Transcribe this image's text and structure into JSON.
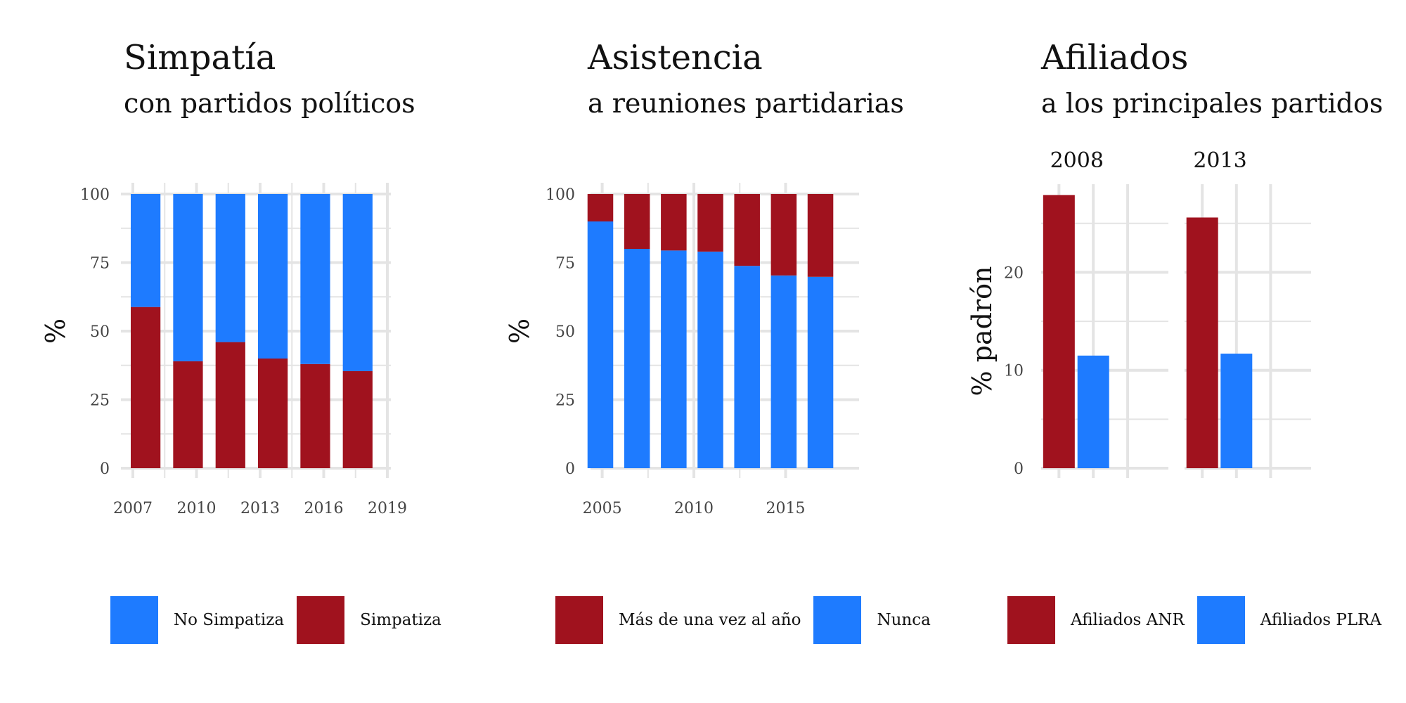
{
  "colors": {
    "red": "#A0121E",
    "blue": "#1E7BFF"
  },
  "panels": {
    "p1": {
      "title": "Simpatía",
      "subtitle": "con partidos políticos",
      "legend": [
        "No Simpatiza",
        "Simpatiza"
      ]
    },
    "p2": {
      "title": "Asistencia",
      "subtitle": "a reuniones partidarias",
      "legend": [
        "Más de una vez al año",
        "Nunca"
      ]
    },
    "p3": {
      "title": "Afiliados",
      "subtitle": "a los principales partidos",
      "legend": [
        "Afiliados ANR",
        "Afiliados PLRA"
      ]
    }
  },
  "chart_data": [
    {
      "type": "bar",
      "stacked": true,
      "title": "Simpatía",
      "subtitle": "con partidos políticos",
      "ylabel": "%",
      "ylim": [
        0,
        100
      ],
      "yticks": [
        0,
        25,
        50,
        75,
        100
      ],
      "xticks": [
        2007,
        2010,
        2013,
        2016,
        2019
      ],
      "xlim": [
        2006.9,
        2018.9
      ],
      "bar_width_years": 1.4,
      "x": [
        2007.6,
        2009.6,
        2011.6,
        2013.6,
        2015.6,
        2017.6
      ],
      "series": [
        {
          "name": "Simpatiza",
          "color": "#A0121E",
          "values": [
            58.8,
            39,
            46,
            40,
            38,
            35.4
          ]
        },
        {
          "name": "No Simpatiza",
          "color": "#1E7BFF",
          "values": [
            41.2,
            61,
            54,
            60,
            62,
            64.6
          ]
        }
      ],
      "legend": [
        "No Simpatiza",
        "Simpatiza"
      ],
      "legend_position": "bottom",
      "grid": true
    },
    {
      "type": "bar",
      "stacked": true,
      "title": "Asistencia",
      "subtitle": "a reuniones partidarias",
      "ylabel": "%",
      "ylim": [
        0,
        100
      ],
      "yticks": [
        0,
        25,
        50,
        75,
        100
      ],
      "xticks": [
        2005,
        2010,
        2015
      ],
      "xlim": [
        2004.9,
        2018.7
      ],
      "bar_width_years": 1.4,
      "x": [
        2004.9,
        2006.9,
        2008.9,
        2010.9,
        2012.9,
        2014.9,
        2016.9
      ],
      "series": [
        {
          "name": "Nunca",
          "color": "#1E7BFF",
          "values": [
            90,
            80,
            79.4,
            79,
            73.8,
            70.3,
            69.8
          ]
        },
        {
          "name": "Más de una vez al año",
          "color": "#A0121E",
          "values": [
            10,
            20,
            20.6,
            21,
            26.2,
            29.7,
            30.2
          ]
        }
      ],
      "legend": [
        "Más de una vez al año",
        "Nunca"
      ],
      "legend_position": "bottom",
      "grid": true
    },
    {
      "type": "bar",
      "title": "Afiliados",
      "subtitle": "a los principales partidos",
      "ylabel": "% padrón",
      "ylim": [
        0,
        28
      ],
      "yticks": [
        0,
        10,
        20
      ],
      "facets": [
        "2008",
        "2013"
      ],
      "categories": [
        "Afiliados ANR",
        "Afiliados PLRA"
      ],
      "series": [
        {
          "name": "Afiliados ANR",
          "color": "#A0121E",
          "values": [
            27.9,
            25.6
          ]
        },
        {
          "name": "Afiliados PLRA",
          "color": "#1E7BFF",
          "values": [
            11.5,
            11.7
          ]
        }
      ],
      "legend": [
        "Afiliados ANR",
        "Afiliados PLRA"
      ],
      "legend_position": "bottom",
      "grid": true
    }
  ]
}
